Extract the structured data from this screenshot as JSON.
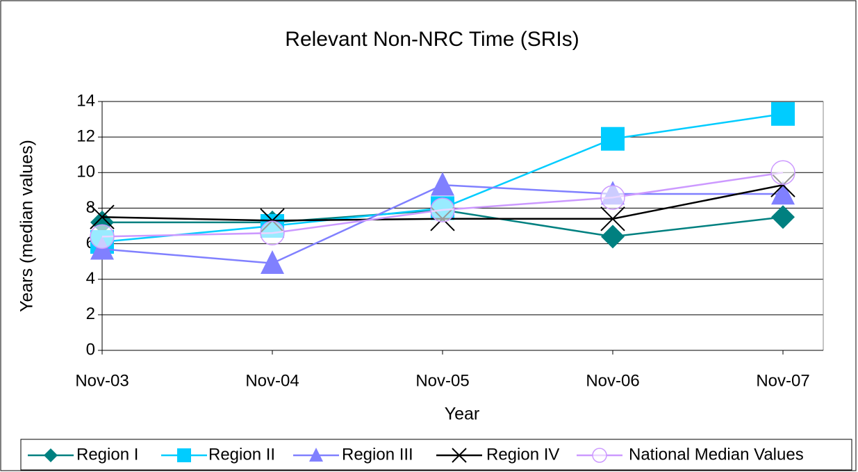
{
  "chart_data": {
    "type": "line",
    "title": "Relevant Non-NRC Time (SRIs)",
    "x_label": "Year",
    "y_label": "Years (median values)",
    "categories": [
      "Nov-03",
      "Nov-04",
      "Nov-05",
      "Nov-06",
      "Nov-07"
    ],
    "ylim": [
      0,
      14
    ],
    "yticks": [
      0,
      2,
      4,
      6,
      8,
      10,
      12,
      14
    ],
    "grid": true,
    "legend": "bottom",
    "series": [
      {
        "name": "Region I",
        "color": "#008080",
        "marker": "diamond",
        "values": [
          7.2,
          7.2,
          7.9,
          6.4,
          7.5
        ]
      },
      {
        "name": "Region II",
        "color": "#00ccff",
        "marker": "square",
        "values": [
          6.1,
          7.0,
          8.0,
          11.9,
          13.3
        ]
      },
      {
        "name": "Region III",
        "color": "#8080ff",
        "marker": "triangle",
        "values": [
          5.7,
          4.9,
          9.3,
          8.8,
          8.8
        ]
      },
      {
        "name": "Region IV",
        "color": "#000000",
        "marker": "x",
        "values": [
          7.5,
          7.3,
          7.4,
          7.4,
          9.3
        ]
      },
      {
        "name": "National Median Values",
        "color": "#cc99ff",
        "marker": "circle",
        "values": [
          6.4,
          6.6,
          7.9,
          8.6,
          10.0
        ]
      }
    ]
  }
}
